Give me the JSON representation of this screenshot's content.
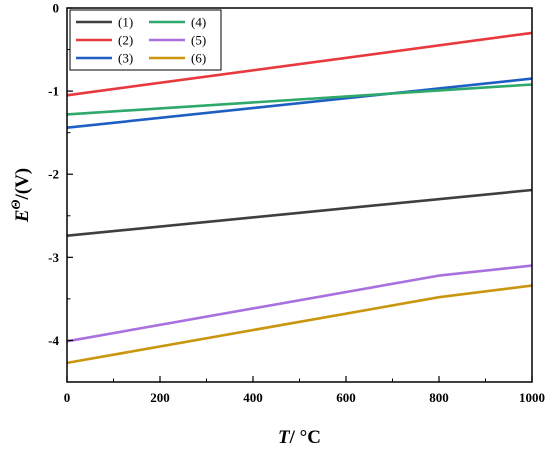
{
  "chart_data": {
    "type": "line",
    "xlabel_italic": "T",
    "xlabel_rest": "/ °C",
    "ylabel_main": "E",
    "ylabel_sup": "Θ",
    "ylabel_rest": "/(V)",
    "xlim": [
      0,
      1000
    ],
    "ylim": [
      -4.5,
      0
    ],
    "xticks": [
      0,
      200,
      400,
      600,
      800,
      1000
    ],
    "xtick_labels": [
      "0",
      "200",
      "400",
      "600",
      "800",
      "1000"
    ],
    "yticks": [
      0,
      -1,
      -2,
      -3,
      -4
    ],
    "ytick_labels": [
      "0",
      "-1",
      "-2",
      "-3",
      "-4"
    ],
    "grid": false,
    "legend_position": "top-left",
    "series": [
      {
        "name": "(1)",
        "color": "#3f3f3f",
        "x": [
          0,
          1000
        ],
        "y": [
          -2.74,
          -2.19
        ]
      },
      {
        "name": "(2)",
        "color": "#e8393f",
        "x": [
          0,
          1000
        ],
        "y": [
          -1.05,
          -0.3
        ]
      },
      {
        "name": "(3)",
        "color": "#1f5fc4",
        "x": [
          0,
          1000
        ],
        "y": [
          -1.44,
          -0.85
        ]
      },
      {
        "name": "(4)",
        "color": "#2ea86b",
        "x": [
          0,
          1000
        ],
        "y": [
          -1.28,
          -0.92
        ]
      },
      {
        "name": "(5)",
        "color": "#a970e0",
        "x": [
          0,
          800,
          1000
        ],
        "y": [
          -4.01,
          -3.22,
          -3.1
        ]
      },
      {
        "name": "(6)",
        "color": "#c9960e",
        "x": [
          0,
          800,
          1000
        ],
        "y": [
          -4.27,
          -3.48,
          -3.34
        ]
      }
    ]
  }
}
